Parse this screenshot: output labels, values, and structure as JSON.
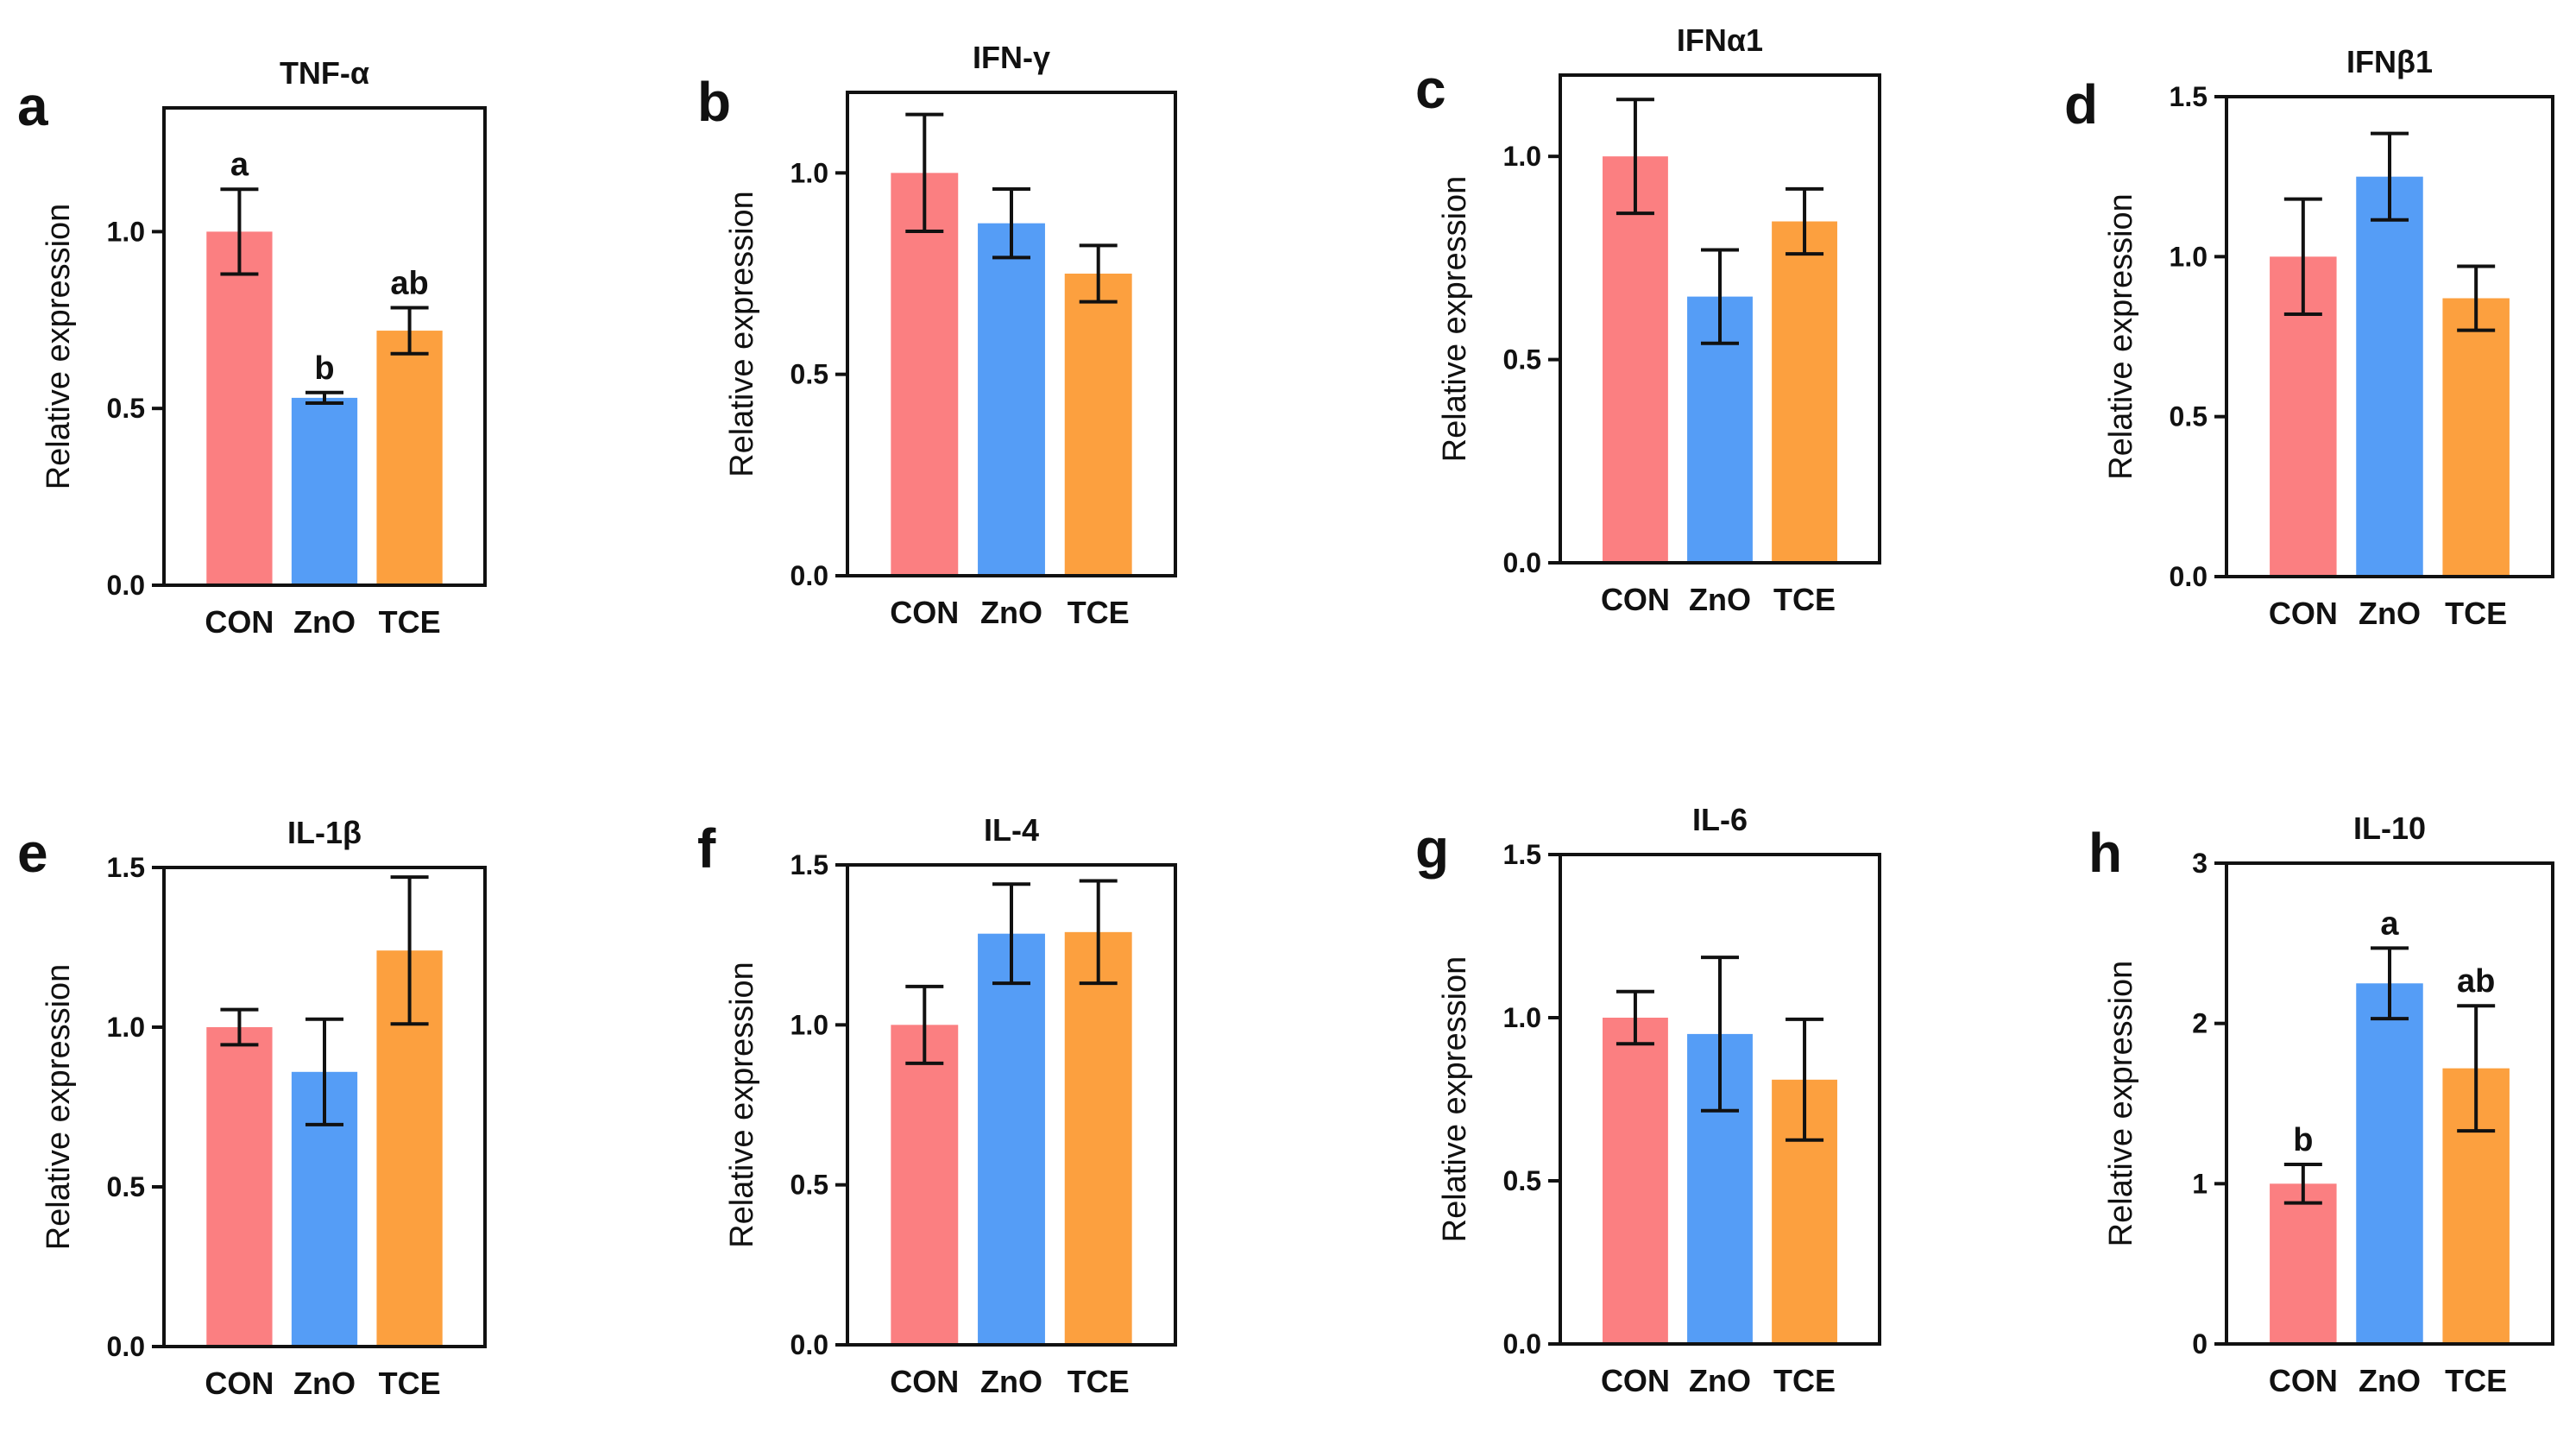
{
  "figure": {
    "colors": {
      "CON": "#fb7f81",
      "ZnO": "#559df6",
      "TCE": "#fca03f",
      "axis": "#111111"
    }
  },
  "chart_data": [
    {
      "type": "bar",
      "panel": "a",
      "title": "TNF-α",
      "ylabel": "Relative expression",
      "xlabel": "",
      "categories": [
        "CON",
        "ZnO",
        "TCE"
      ],
      "values": [
        1.0,
        0.53,
        0.72
      ],
      "errors": [
        0.12,
        0.015,
        0.065
      ],
      "ylim": [
        0,
        1.35
      ],
      "yticks": [
        "0.0",
        "0.5",
        "1.0"
      ],
      "ytick_values": [
        0,
        0.5,
        1.0
      ],
      "significance": [
        "a",
        "b",
        "ab"
      ]
    },
    {
      "type": "bar",
      "panel": "b",
      "title": "IFN-γ",
      "ylabel": "Relative expression",
      "xlabel": "",
      "categories": [
        "CON",
        "ZnO",
        "TCE"
      ],
      "values": [
        1.0,
        0.875,
        0.75
      ],
      "errors": [
        0.145,
        0.085,
        0.07
      ],
      "ylim": [
        0,
        1.2
      ],
      "yticks": [
        "0.0",
        "0.5",
        "1.0"
      ],
      "ytick_values": [
        0,
        0.5,
        1.0
      ],
      "significance": []
    },
    {
      "type": "bar",
      "panel": "c",
      "title": "IFNα1",
      "ylabel": "Relative expression",
      "xlabel": "",
      "categories": [
        "CON",
        "ZnO",
        "TCE"
      ],
      "values": [
        1.0,
        0.655,
        0.84
      ],
      "errors": [
        0.14,
        0.115,
        0.08
      ],
      "ylim": [
        0,
        1.2
      ],
      "yticks": [
        "0.0",
        "0.5",
        "1.0"
      ],
      "ytick_values": [
        0,
        0.5,
        1.0
      ],
      "significance": []
    },
    {
      "type": "bar",
      "panel": "d",
      "title": "IFNβ1",
      "ylabel": "Relative expression",
      "xlabel": "",
      "categories": [
        "CON",
        "ZnO",
        "TCE"
      ],
      "values": [
        1.0,
        1.25,
        0.87
      ],
      "errors": [
        0.18,
        0.135,
        0.1
      ],
      "ylim": [
        0,
        1.5
      ],
      "yticks": [
        "0.0",
        "0.5",
        "1.0",
        "1.5"
      ],
      "ytick_values": [
        0,
        0.5,
        1.0,
        1.5
      ],
      "significance": []
    },
    {
      "type": "bar",
      "panel": "e",
      "title": "IL-1β",
      "ylabel": "Relative expression",
      "xlabel": "",
      "categories": [
        "CON",
        "ZnO",
        "TCE"
      ],
      "values": [
        1.0,
        0.86,
        1.24
      ],
      "errors": [
        0.055,
        0.165,
        0.23
      ],
      "ylim": [
        0,
        1.5
      ],
      "yticks": [
        "0.0",
        "0.5",
        "1.0",
        "1.5"
      ],
      "ytick_values": [
        0,
        0.5,
        1.0,
        1.5
      ],
      "significance": []
    },
    {
      "type": "bar",
      "panel": "f",
      "title": "IL-4",
      "ylabel": "Relative expression",
      "xlabel": "",
      "categories": [
        "CON",
        "ZnO",
        "TCE"
      ],
      "values": [
        1.0,
        1.285,
        1.29
      ],
      "errors": [
        0.12,
        0.155,
        0.16
      ],
      "ylim": [
        0,
        1.5
      ],
      "yticks": [
        "0.0",
        "0.5",
        "1.0",
        "1.5"
      ],
      "ytick_values": [
        0,
        0.5,
        1.0,
        1.5
      ],
      "significance": []
    },
    {
      "type": "bar",
      "panel": "g",
      "title": "IL-6",
      "ylabel": "Relative expression",
      "xlabel": "",
      "categories": [
        "CON",
        "ZnO",
        "TCE"
      ],
      "values": [
        1.0,
        0.95,
        0.81
      ],
      "errors": [
        0.08,
        0.235,
        0.185
      ],
      "ylim": [
        0,
        1.5
      ],
      "yticks": [
        "0.0",
        "0.5",
        "1.0",
        "1.5"
      ],
      "ytick_values": [
        0,
        0.5,
        1.0,
        1.5
      ],
      "significance": []
    },
    {
      "type": "bar",
      "panel": "h",
      "title": "IL-10",
      "ylabel": "Relative expression",
      "xlabel": "",
      "categories": [
        "CON",
        "ZnO",
        "TCE"
      ],
      "values": [
        1.0,
        2.25,
        1.72
      ],
      "errors": [
        0.12,
        0.22,
        0.39
      ],
      "ylim": [
        0,
        3
      ],
      "yticks": [
        "0",
        "1",
        "2",
        "3"
      ],
      "ytick_values": [
        0,
        1,
        2,
        3
      ],
      "significance": [
        "b",
        "a",
        "ab"
      ]
    }
  ]
}
